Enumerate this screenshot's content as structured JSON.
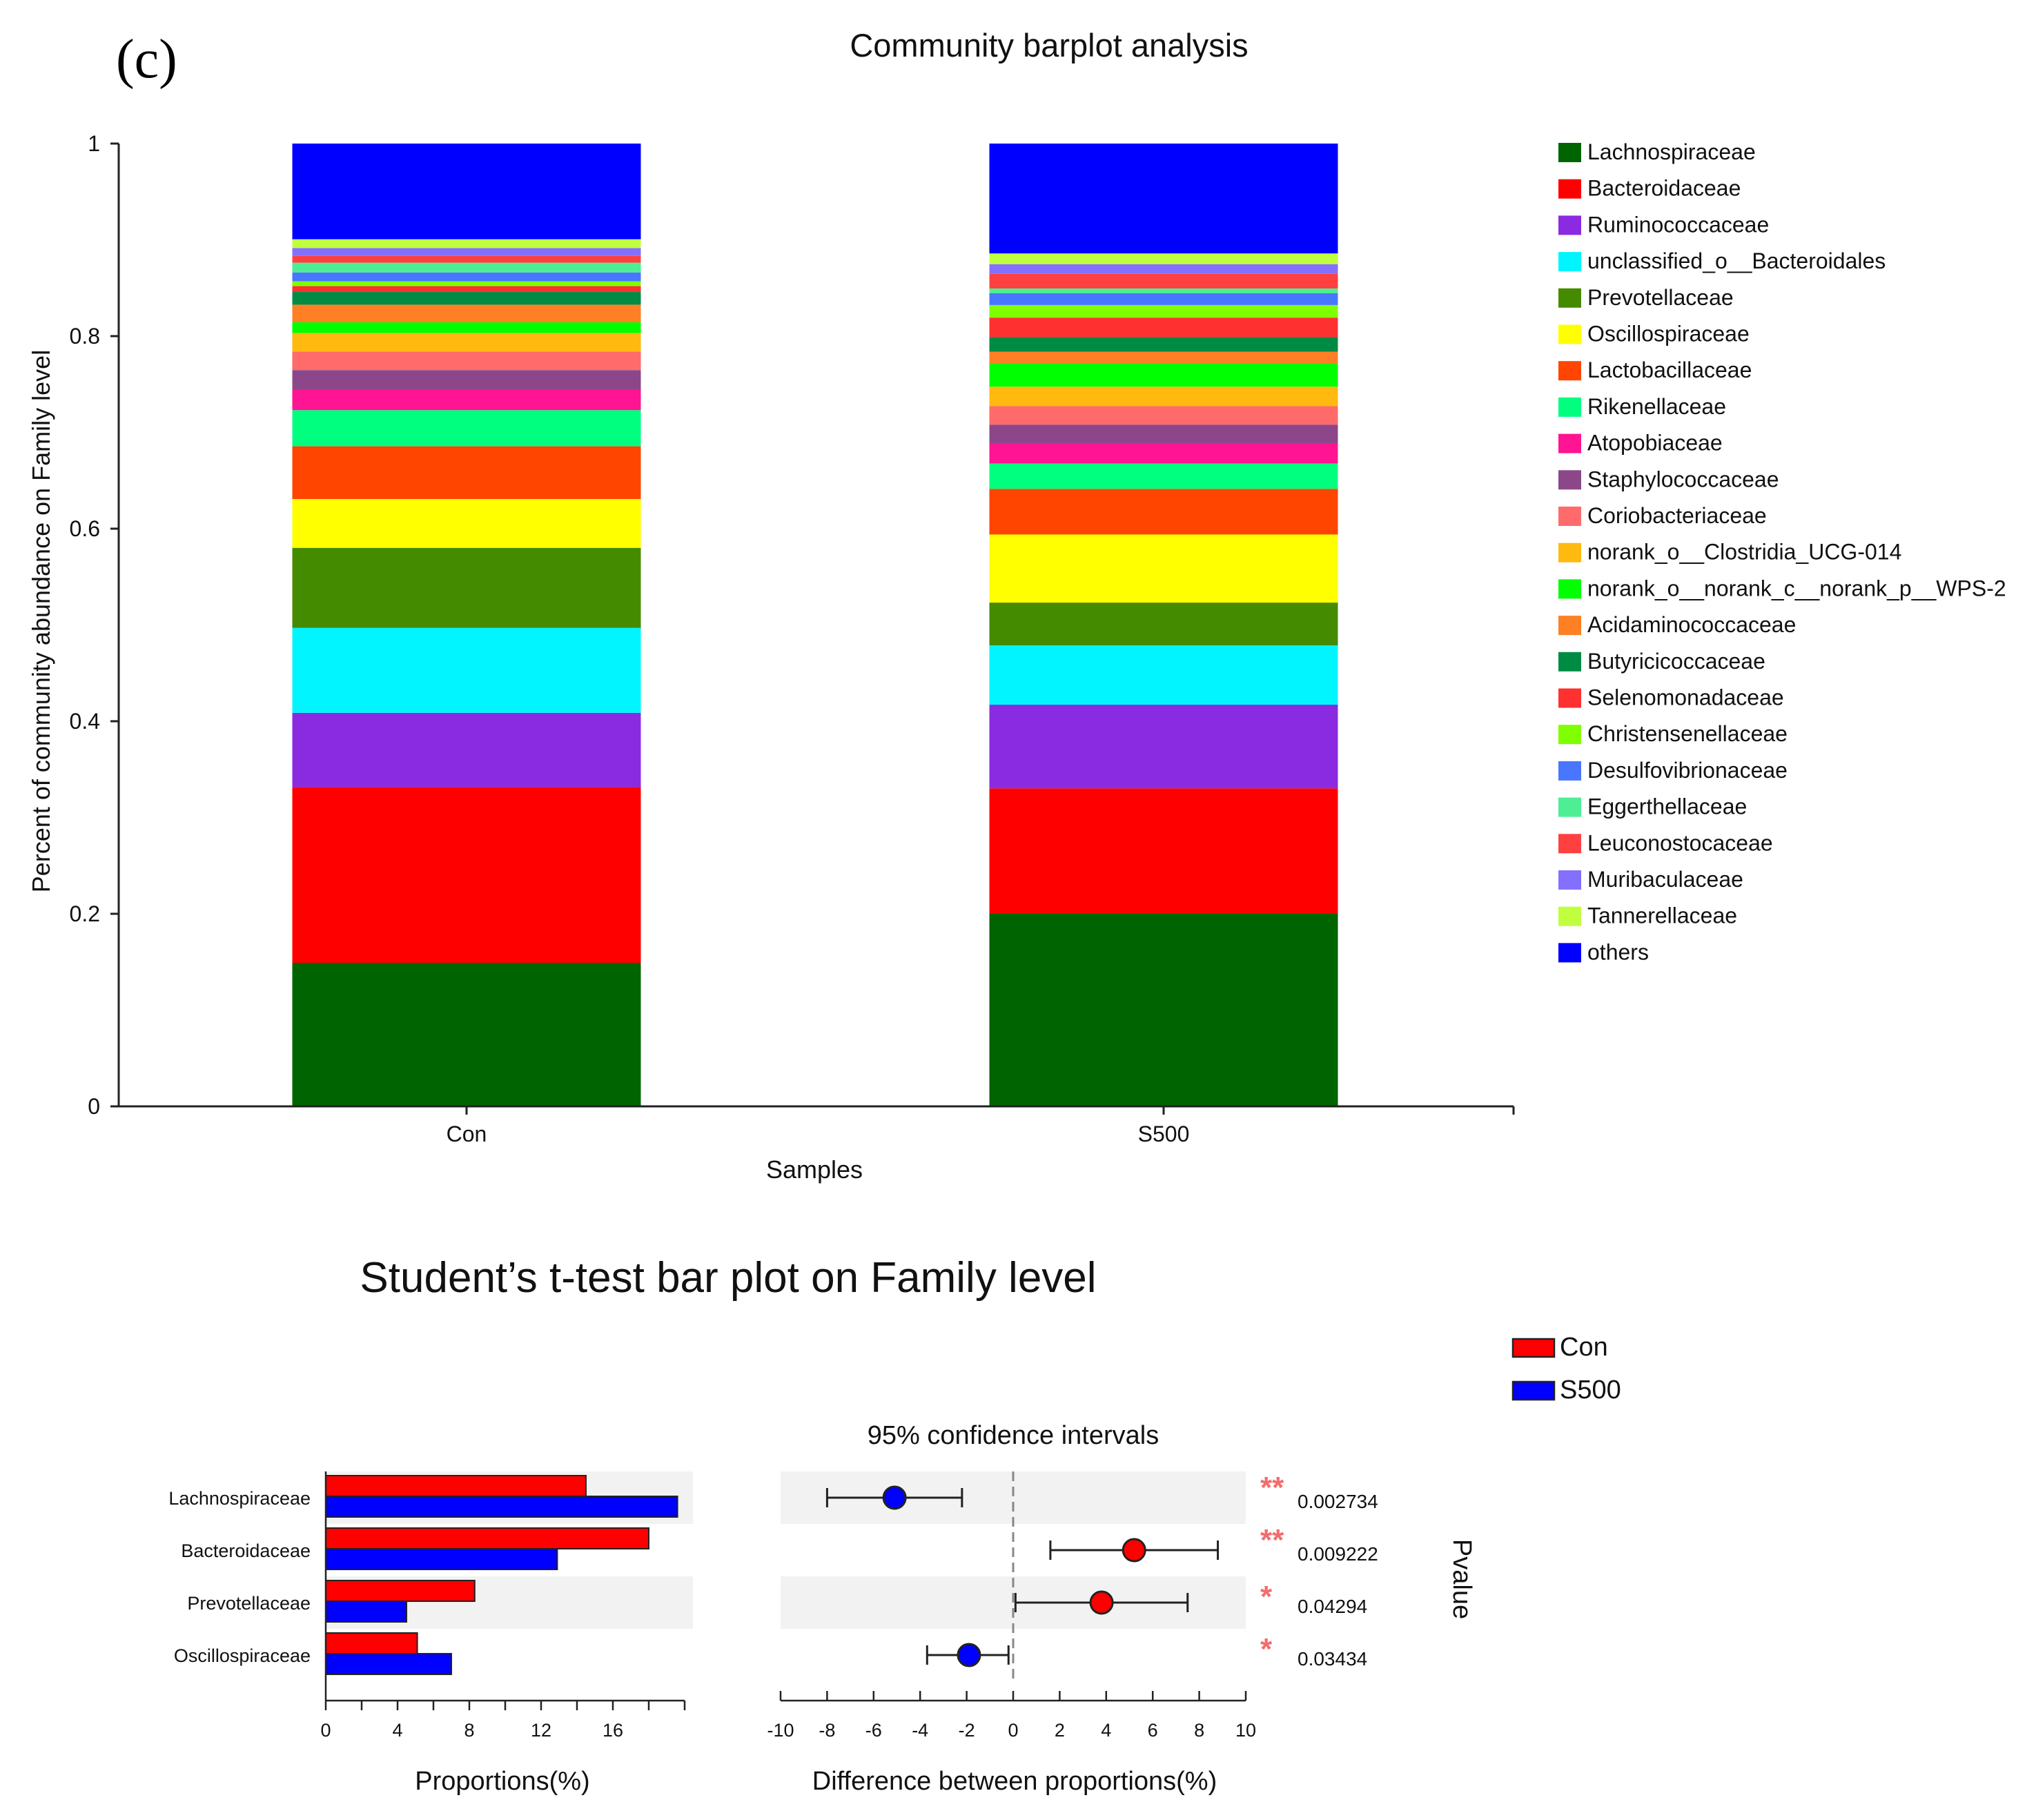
{
  "panel_label": "(c)",
  "chart_data": [
    {
      "type": "bar",
      "subtype": "stacked-100",
      "title": "Community barplot analysis",
      "xlabel": "Samples",
      "ylabel": "Percent of community abundance on Family level",
      "ylim": [
        0,
        1
      ],
      "yticks": [
        0,
        0.2,
        0.4,
        0.6,
        0.8,
        1
      ],
      "ytick_labels": [
        "0",
        "0.2",
        "0.4",
        "0.6",
        "0.8",
        "1"
      ],
      "categories": [
        "Con",
        "S500"
      ],
      "legend_position": "right",
      "series": [
        {
          "name": "Lachnospiraceae",
          "color": "#006400",
          "values": [
            0.147,
            0.198
          ]
        },
        {
          "name": "Bacteroidaceae",
          "color": "#ff0000",
          "values": [
            0.18,
            0.129
          ]
        },
        {
          "name": "Ruminococcaceae",
          "color": "#8a2be2",
          "values": [
            0.076,
            0.086
          ]
        },
        {
          "name": "unclassified_o__Bacteroidales",
          "color": "#00f5ff",
          "values": [
            0.087,
            0.061
          ]
        },
        {
          "name": "Prevotellaceae",
          "color": "#458b00",
          "values": [
            0.082,
            0.044
          ]
        },
        {
          "name": "Oscillospiraceae",
          "color": "#ffff00",
          "values": [
            0.05,
            0.07
          ]
        },
        {
          "name": "Lactobacillaceae",
          "color": "#ff4500",
          "values": [
            0.054,
            0.047
          ]
        },
        {
          "name": "Rikenellaceae",
          "color": "#00ff7f",
          "values": [
            0.037,
            0.026
          ]
        },
        {
          "name": "Atopobiaceae",
          "color": "#ff1493",
          "values": [
            0.021,
            0.021
          ]
        },
        {
          "name": "Staphylococcaceae",
          "color": "#8b4789",
          "values": [
            0.02,
            0.019
          ]
        },
        {
          "name": "Coriobacteriaceae",
          "color": "#ff6a6a",
          "values": [
            0.019,
            0.019
          ]
        },
        {
          "name": "norank_o__Clostridia_UCG-014",
          "color": "#ffb90f",
          "values": [
            0.019,
            0.02
          ]
        },
        {
          "name": "norank_o__norank_c__norank_p__WPS-2",
          "color": "#00ff00",
          "values": [
            0.011,
            0.024
          ]
        },
        {
          "name": "Acidaminococcaceae",
          "color": "#ff7f24",
          "values": [
            0.018,
            0.012
          ]
        },
        {
          "name": "Butyricicoccaceae",
          "color": "#008b45",
          "values": [
            0.013,
            0.015
          ]
        },
        {
          "name": "Selenomonadaceae",
          "color": "#ff3030",
          "values": [
            0.006,
            0.02
          ]
        },
        {
          "name": "Christensenellaceae",
          "color": "#7fff00",
          "values": [
            0.005,
            0.013
          ]
        },
        {
          "name": "Desulfovibrionaceae",
          "color": "#4876ff",
          "values": [
            0.009,
            0.012
          ]
        },
        {
          "name": "Eggerthellaceae",
          "color": "#4eee94",
          "values": [
            0.01,
            0.005
          ]
        },
        {
          "name": "Leuconostocaceae",
          "color": "#ff4040",
          "values": [
            0.007,
            0.015
          ]
        },
        {
          "name": "Muribaculaceae",
          "color": "#8470ff",
          "values": [
            0.008,
            0.01
          ]
        },
        {
          "name": "Tannerellaceae",
          "color": "#c0ff3e",
          "values": [
            0.009,
            0.011
          ]
        },
        {
          "name": "others",
          "color": "#0000ff",
          "values": [
            0.098,
            0.113
          ]
        }
      ]
    },
    {
      "type": "bar",
      "subtype": "horizontal-grouped",
      "title": "Student’s t-test bar plot on Family level",
      "xlabel": "Proportions(%)",
      "xlim": [
        0,
        20
      ],
      "xticks": [
        0,
        4,
        8,
        12,
        16
      ],
      "xtick_labels": [
        "0",
        "4",
        "8",
        "12",
        "16"
      ],
      "categories": [
        "Lachnospiraceae",
        "Bacteroidaceae",
        "Prevotellaceae",
        "Oscillospiraceae"
      ],
      "legend_position": "top-right",
      "series": [
        {
          "name": "Con",
          "color": "#ff0000",
          "values": [
            14.5,
            18.0,
            8.3,
            5.1
          ]
        },
        {
          "name": "S500",
          "color": "#0000ff",
          "values": [
            19.6,
            12.9,
            4.5,
            7.0
          ]
        }
      ]
    },
    {
      "type": "scatter",
      "subtype": "confidence-interval",
      "title": "95% confidence intervals",
      "xlabel": "Difference between proportions(%)",
      "ylabel": "Pvalue",
      "xlim": [
        -10,
        10
      ],
      "xticks": [
        -10,
        -8,
        -6,
        -4,
        -2,
        0,
        2,
        4,
        6,
        8,
        10
      ],
      "xtick_labels": [
        "-10",
        "-8",
        "-6",
        "-4",
        "-2",
        "0",
        "2",
        "4",
        "6",
        "8",
        "10"
      ],
      "categories": [
        "Lachnospiraceae",
        "Bacteroidaceae",
        "Prevotellaceae",
        "Oscillospiraceae"
      ],
      "points": [
        {
          "estimate": -5.1,
          "low": -8.0,
          "high": -2.2,
          "color": "#0000ff",
          "pvalue": "0.002734",
          "sig": "**"
        },
        {
          "estimate": 5.2,
          "low": 1.6,
          "high": 8.8,
          "color": "#ff0000",
          "pvalue": "0.009222",
          "sig": "**"
        },
        {
          "estimate": 3.8,
          "low": 0.1,
          "high": 7.5,
          "color": "#ff0000",
          "pvalue": "0.04294",
          "sig": "*"
        },
        {
          "estimate": -1.9,
          "low": -3.7,
          "high": -0.2,
          "color": "#0000ff",
          "pvalue": "0.03434",
          "sig": "*"
        }
      ]
    }
  ]
}
